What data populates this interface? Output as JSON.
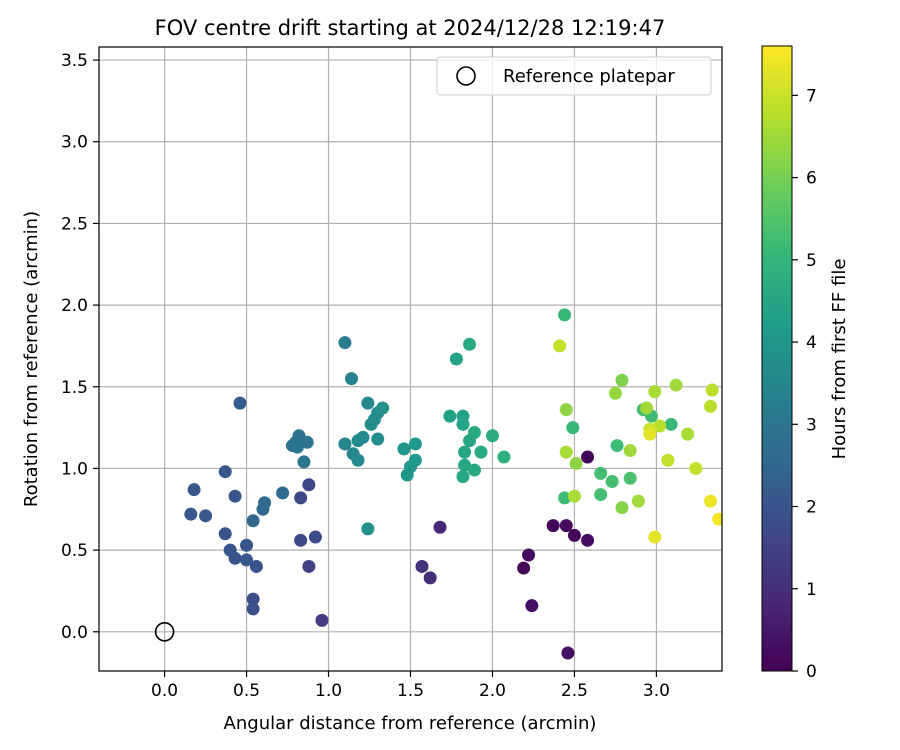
{
  "chart_data": {
    "type": "scatter",
    "title": "FOV centre drift starting at 2024/12/28 12:19:47",
    "xlabel": "Angular distance from reference (arcmin)",
    "ylabel": "Rotation from reference (arcmin)",
    "xlim": [
      -0.4,
      3.4
    ],
    "ylim": [
      -0.24,
      3.58
    ],
    "x_ticks": [
      0.0,
      0.5,
      1.0,
      1.5,
      2.0,
      2.5,
      3.0
    ],
    "x_tick_labels": [
      "0.0",
      "0.5",
      "1.0",
      "1.5",
      "2.0",
      "2.5",
      "3.0"
    ],
    "y_ticks": [
      0.0,
      0.5,
      1.0,
      1.5,
      2.0,
      2.5,
      3.0,
      3.5
    ],
    "y_tick_labels": [
      "0.0",
      "0.5",
      "1.0",
      "1.5",
      "2.0",
      "2.5",
      "3.0",
      "3.5"
    ],
    "grid": true,
    "legend": {
      "placement": "top-right",
      "entries": [
        "Reference platepar"
      ]
    },
    "reference_point": {
      "x": 0.0,
      "y": 0.0
    },
    "colorbar": {
      "label": "Hours from first FF file",
      "range": [
        0,
        7.6
      ],
      "ticks": [
        0,
        1,
        2,
        3,
        4,
        5,
        6,
        7
      ],
      "tick_labels": [
        "0",
        "1",
        "2",
        "3",
        "4",
        "5",
        "6",
        "7"
      ],
      "colormap": [
        "#440154",
        "#482878",
        "#3e4989",
        "#31688e",
        "#26828e",
        "#1f9e89",
        "#35b779",
        "#6ece58",
        "#b5de2b",
        "#fde725"
      ]
    },
    "points_columns": [
      "x",
      "y",
      "hours"
    ],
    "points": [
      [
        2.19,
        0.39,
        0.1
      ],
      [
        2.22,
        0.47,
        0.2
      ],
      [
        2.24,
        0.16,
        0.3
      ],
      [
        2.37,
        0.65,
        0.1
      ],
      [
        2.45,
        0.65,
        0.2
      ],
      [
        2.46,
        -0.13,
        0.3
      ],
      [
        2.5,
        0.59,
        0.1
      ],
      [
        2.58,
        0.56,
        0.2
      ],
      [
        2.58,
        1.07,
        0.1
      ],
      [
        1.68,
        0.64,
        0.8
      ],
      [
        1.62,
        0.33,
        1.0
      ],
      [
        1.57,
        0.4,
        1.1
      ],
      [
        0.96,
        0.07,
        1.3
      ],
      [
        0.88,
        0.4,
        1.5
      ],
      [
        0.92,
        0.58,
        1.7
      ],
      [
        0.83,
        0.56,
        1.7
      ],
      [
        0.88,
        0.9,
        1.6
      ],
      [
        0.83,
        0.82,
        1.7
      ],
      [
        0.54,
        0.2,
        1.8
      ],
      [
        0.54,
        0.14,
        1.9
      ],
      [
        0.56,
        0.4,
        2.0
      ],
      [
        0.43,
        0.45,
        2.0
      ],
      [
        0.4,
        0.5,
        2.0
      ],
      [
        0.5,
        0.44,
        2.1
      ],
      [
        0.5,
        0.53,
        2.0
      ],
      [
        0.37,
        0.6,
        2.0
      ],
      [
        0.43,
        0.83,
        2.0
      ],
      [
        0.37,
        0.98,
        2.1
      ],
      [
        0.46,
        1.4,
        2.2
      ],
      [
        0.18,
        0.87,
        2.1
      ],
      [
        0.16,
        0.72,
        2.1
      ],
      [
        0.25,
        0.71,
        2.1
      ],
      [
        0.54,
        0.68,
        2.5
      ],
      [
        0.61,
        0.79,
        2.6
      ],
      [
        0.6,
        0.75,
        2.6
      ],
      [
        0.72,
        0.85,
        2.7
      ],
      [
        0.78,
        1.14,
        2.8
      ],
      [
        0.8,
        1.16,
        2.8
      ],
      [
        0.82,
        1.2,
        2.9
      ],
      [
        0.85,
        1.04,
        2.9
      ],
      [
        0.87,
        1.16,
        3.0
      ],
      [
        0.81,
        1.13,
        3.0
      ],
      [
        1.1,
        1.77,
        3.2
      ],
      [
        1.14,
        1.55,
        3.4
      ],
      [
        1.1,
        1.15,
        3.5
      ],
      [
        1.15,
        1.09,
        3.5
      ],
      [
        1.18,
        1.05,
        3.6
      ],
      [
        1.18,
        1.17,
        3.6
      ],
      [
        1.21,
        1.19,
        3.6
      ],
      [
        1.24,
        1.4,
        3.5
      ],
      [
        1.26,
        1.27,
        3.7
      ],
      [
        1.28,
        1.3,
        3.7
      ],
      [
        1.3,
        1.18,
        3.7
      ],
      [
        1.3,
        1.34,
        3.7
      ],
      [
        1.33,
        1.37,
        3.8
      ],
      [
        1.24,
        0.63,
        3.9
      ],
      [
        1.46,
        1.12,
        4.0
      ],
      [
        1.48,
        0.96,
        4.0
      ],
      [
        1.5,
        1.01,
        4.0
      ],
      [
        1.53,
        1.15,
        4.1
      ],
      [
        1.53,
        1.05,
        4.1
      ],
      [
        1.74,
        1.32,
        4.3
      ],
      [
        1.78,
        1.67,
        4.4
      ],
      [
        1.82,
        1.32,
        4.4
      ],
      [
        1.82,
        1.27,
        4.4
      ],
      [
        1.82,
        0.95,
        4.5
      ],
      [
        1.83,
        1.02,
        4.5
      ],
      [
        1.83,
        1.1,
        4.5
      ],
      [
        1.86,
        1.76,
        4.6
      ],
      [
        1.86,
        1.17,
        4.5
      ],
      [
        1.89,
        1.22,
        4.6
      ],
      [
        1.89,
        0.99,
        4.6
      ],
      [
        1.93,
        1.1,
        4.6
      ],
      [
        2.0,
        1.2,
        4.7
      ],
      [
        2.07,
        1.07,
        4.8
      ],
      [
        2.44,
        1.94,
        5.1
      ],
      [
        2.44,
        0.82,
        5.2
      ],
      [
        2.49,
        1.25,
        5.1
      ],
      [
        2.73,
        0.92,
        5.3
      ],
      [
        2.66,
        0.84,
        5.3
      ],
      [
        2.66,
        0.97,
        5.3
      ],
      [
        2.76,
        1.14,
        5.2
      ],
      [
        2.84,
        0.94,
        5.4
      ],
      [
        2.92,
        1.36,
        5.3
      ],
      [
        2.97,
        1.32,
        5.2
      ],
      [
        3.09,
        1.27,
        5.1
      ],
      [
        2.51,
        1.03,
        6.3
      ],
      [
        2.45,
        1.36,
        6.3
      ],
      [
        2.45,
        1.1,
        6.6
      ],
      [
        2.5,
        0.83,
        6.6
      ],
      [
        2.75,
        1.46,
        6.4
      ],
      [
        2.79,
        1.54,
        6.1
      ],
      [
        2.79,
        0.76,
        6.2
      ],
      [
        2.84,
        1.11,
        6.5
      ],
      [
        2.89,
        0.8,
        6.5
      ],
      [
        2.94,
        1.37,
        6.5
      ],
      [
        2.99,
        1.47,
        6.6
      ],
      [
        3.12,
        1.51,
        6.5
      ],
      [
        3.19,
        1.21,
        6.6
      ],
      [
        2.41,
        1.75,
        6.9
      ],
      [
        3.07,
        1.05,
        6.9
      ],
      [
        3.24,
        1.0,
        6.9
      ],
      [
        3.02,
        1.26,
        6.8
      ],
      [
        2.96,
        1.24,
        7.0
      ],
      [
        2.96,
        1.21,
        7.3
      ],
      [
        3.34,
        1.48,
        6.8
      ],
      [
        3.33,
        1.38,
        6.8
      ],
      [
        2.99,
        0.58,
        7.3
      ],
      [
        3.33,
        0.8,
        7.4
      ],
      [
        3.38,
        0.69,
        7.5
      ]
    ]
  }
}
